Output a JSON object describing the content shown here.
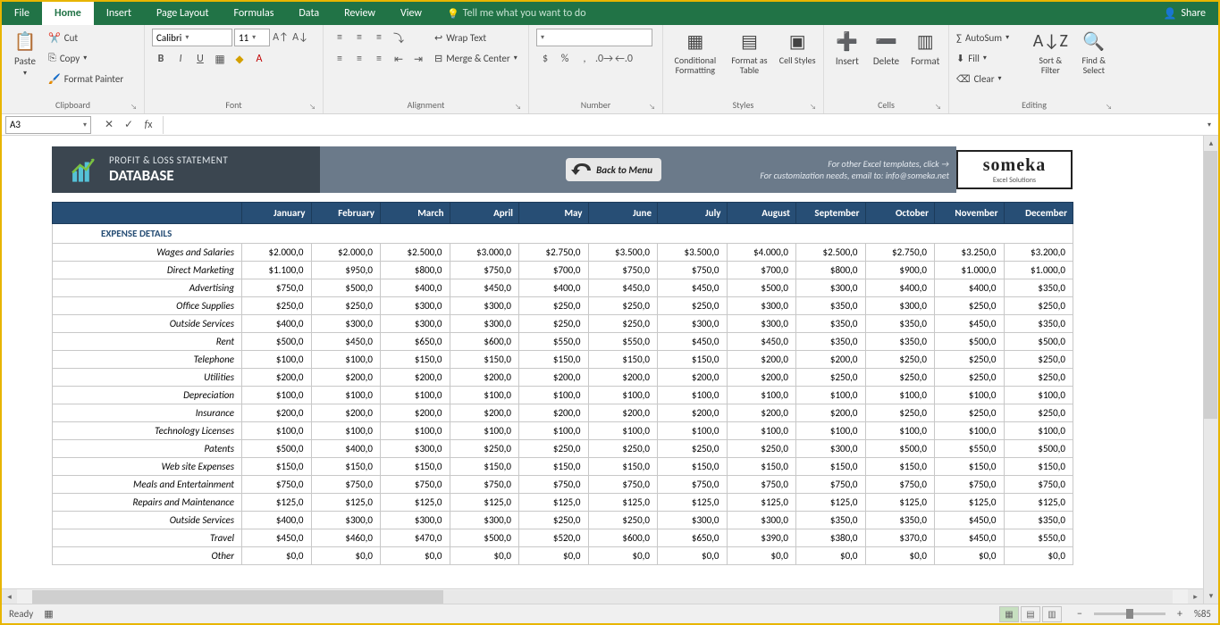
{
  "tabs": {
    "file": "File",
    "home": "Home",
    "insert": "Insert",
    "pageLayout": "Page Layout",
    "formulas": "Formulas",
    "data": "Data",
    "review": "Review",
    "view": "View",
    "tell": "Tell me what you want to do",
    "share": "Share"
  },
  "ribbon": {
    "clipboard": {
      "paste": "Paste",
      "cut": "Cut",
      "copy": "Copy",
      "fmtPainter": "Format Painter",
      "label": "Clipboard"
    },
    "font": {
      "name": "Calibri",
      "size": "11",
      "label": "Font"
    },
    "alignment": {
      "wrap": "Wrap Text",
      "merge": "Merge & Center",
      "label": "Alignment"
    },
    "number": {
      "label": "Number"
    },
    "styles": {
      "cond": "Conditional Formatting",
      "asTable": "Format as Table",
      "cellStyles": "Cell Styles",
      "label": "Styles"
    },
    "cells": {
      "insert": "Insert",
      "delete": "Delete",
      "format": "Format",
      "label": "Cells"
    },
    "editing": {
      "autosum": "AutoSum",
      "fill": "Fill",
      "clear": "Clear",
      "sort": "Sort & Filter",
      "find": "Find & Select",
      "label": "Editing"
    }
  },
  "namebox": "A3",
  "banner": {
    "line1": "PROFIT & LOSS STATEMENT",
    "line2": "DATABASE",
    "back": "Back to Menu",
    "r1": "For other Excel templates, click →",
    "r2": "For customization needs, email to: info@someka.net",
    "brand": "someka",
    "brandSub": "Excel Solutions"
  },
  "months": [
    "January",
    "February",
    "March",
    "April",
    "May",
    "June",
    "July",
    "August",
    "September",
    "October",
    "November",
    "December"
  ],
  "section": "EXPENSE DETAILS",
  "rows": [
    {
      "label": "Wages and Salaries",
      "v": [
        "$2.000,0",
        "$2.000,0",
        "$2.500,0",
        "$3.000,0",
        "$2.750,0",
        "$3.500,0",
        "$3.500,0",
        "$4.000,0",
        "$2.500,0",
        "$2.750,0",
        "$3.250,0",
        "$3.200,0"
      ]
    },
    {
      "label": "Direct Marketing",
      "v": [
        "$1.100,0",
        "$950,0",
        "$800,0",
        "$750,0",
        "$700,0",
        "$750,0",
        "$750,0",
        "$700,0",
        "$800,0",
        "$900,0",
        "$1.000,0",
        "$1.000,0"
      ]
    },
    {
      "label": "Advertising",
      "v": [
        "$750,0",
        "$500,0",
        "$400,0",
        "$450,0",
        "$400,0",
        "$450,0",
        "$450,0",
        "$500,0",
        "$300,0",
        "$400,0",
        "$400,0",
        "$350,0"
      ]
    },
    {
      "label": "Office Supplies",
      "v": [
        "$250,0",
        "$250,0",
        "$300,0",
        "$300,0",
        "$250,0",
        "$250,0",
        "$250,0",
        "$300,0",
        "$350,0",
        "$300,0",
        "$250,0",
        "$250,0"
      ]
    },
    {
      "label": "Outside Services",
      "v": [
        "$400,0",
        "$300,0",
        "$300,0",
        "$300,0",
        "$250,0",
        "$250,0",
        "$300,0",
        "$300,0",
        "$350,0",
        "$350,0",
        "$450,0",
        "$350,0"
      ]
    },
    {
      "label": "Rent",
      "v": [
        "$500,0",
        "$450,0",
        "$650,0",
        "$600,0",
        "$550,0",
        "$550,0",
        "$450,0",
        "$450,0",
        "$350,0",
        "$350,0",
        "$500,0",
        "$500,0"
      ]
    },
    {
      "label": "Telephone",
      "v": [
        "$100,0",
        "$100,0",
        "$150,0",
        "$150,0",
        "$150,0",
        "$150,0",
        "$150,0",
        "$200,0",
        "$200,0",
        "$250,0",
        "$250,0",
        "$250,0"
      ]
    },
    {
      "label": "Utilities",
      "v": [
        "$200,0",
        "$200,0",
        "$200,0",
        "$200,0",
        "$200,0",
        "$200,0",
        "$200,0",
        "$200,0",
        "$250,0",
        "$250,0",
        "$250,0",
        "$250,0"
      ]
    },
    {
      "label": "Depreciation",
      "v": [
        "$100,0",
        "$100,0",
        "$100,0",
        "$100,0",
        "$100,0",
        "$100,0",
        "$100,0",
        "$100,0",
        "$100,0",
        "$100,0",
        "$100,0",
        "$100,0"
      ]
    },
    {
      "label": "Insurance",
      "v": [
        "$200,0",
        "$200,0",
        "$200,0",
        "$200,0",
        "$200,0",
        "$200,0",
        "$200,0",
        "$200,0",
        "$200,0",
        "$250,0",
        "$250,0",
        "$250,0"
      ]
    },
    {
      "label": "Technology Licenses",
      "v": [
        "$100,0",
        "$100,0",
        "$100,0",
        "$100,0",
        "$100,0",
        "$100,0",
        "$100,0",
        "$100,0",
        "$100,0",
        "$100,0",
        "$100,0",
        "$100,0"
      ]
    },
    {
      "label": "Patents",
      "v": [
        "$500,0",
        "$400,0",
        "$300,0",
        "$250,0",
        "$250,0",
        "$250,0",
        "$250,0",
        "$250,0",
        "$300,0",
        "$500,0",
        "$550,0",
        "$500,0"
      ]
    },
    {
      "label": "Web site Expenses",
      "v": [
        "$150,0",
        "$150,0",
        "$150,0",
        "$150,0",
        "$150,0",
        "$150,0",
        "$150,0",
        "$150,0",
        "$150,0",
        "$150,0",
        "$150,0",
        "$150,0"
      ]
    },
    {
      "label": "Meals and Entertainment",
      "v": [
        "$750,0",
        "$750,0",
        "$750,0",
        "$750,0",
        "$750,0",
        "$750,0",
        "$750,0",
        "$750,0",
        "$750,0",
        "$750,0",
        "$750,0",
        "$750,0"
      ]
    },
    {
      "label": "Repairs and Maintenance",
      "v": [
        "$125,0",
        "$125,0",
        "$125,0",
        "$125,0",
        "$125,0",
        "$125,0",
        "$125,0",
        "$125,0",
        "$125,0",
        "$125,0",
        "$125,0",
        "$125,0"
      ]
    },
    {
      "label": "Outside Services",
      "v": [
        "$400,0",
        "$300,0",
        "$300,0",
        "$300,0",
        "$250,0",
        "$250,0",
        "$300,0",
        "$300,0",
        "$350,0",
        "$350,0",
        "$450,0",
        "$350,0"
      ]
    },
    {
      "label": "Travel",
      "v": [
        "$450,0",
        "$460,0",
        "$470,0",
        "$500,0",
        "$520,0",
        "$600,0",
        "$650,0",
        "$390,0",
        "$380,0",
        "$370,0",
        "$450,0",
        "$550,0"
      ]
    },
    {
      "label": "Other",
      "v": [
        "$0,0",
        "$0,0",
        "$0,0",
        "$0,0",
        "$0,0",
        "$0,0",
        "$0,0",
        "$0,0",
        "$0,0",
        "$0,0",
        "$0,0",
        "$0,0"
      ]
    }
  ],
  "status": {
    "ready": "Ready",
    "zoom": "%85"
  }
}
